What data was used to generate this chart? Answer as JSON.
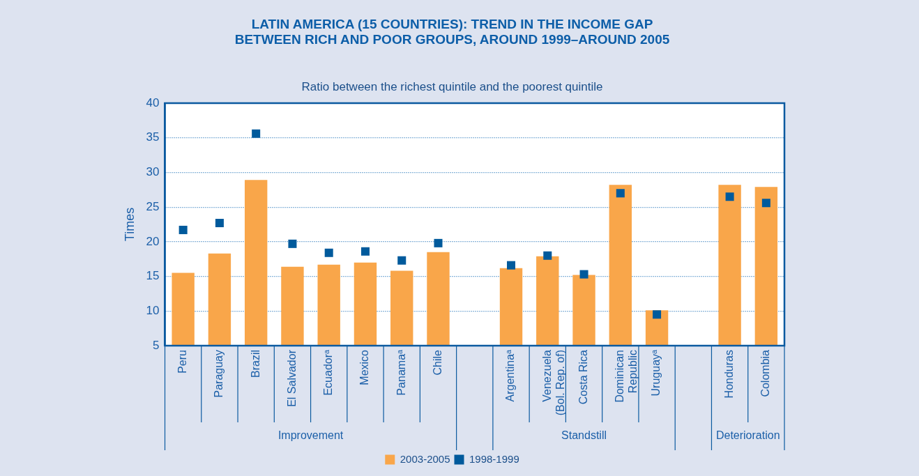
{
  "chart_data": {
    "type": "bar",
    "title": "LATIN AMERICA (15 COUNTRIES): TREND IN THE INCOME GAP BETWEEN RICH AND POOR GROUPS, AROUND 1999–AROUND 2005",
    "subtitle": "Ratio between the richest quintile and the poorest quintile",
    "ylabel": "Times",
    "categories": [
      "Peru",
      "Paraguay",
      "Brazil",
      "El Salvador",
      "Ecuadorᵃ",
      "Mexico",
      "Panamaᵃ",
      "Chile",
      null,
      "Argentinaᵃ",
      "Venezuela (Bol. Rep. of)",
      "Costa Rica",
      "Dominican Republic",
      "Uruguayᵃ",
      null,
      "Honduras",
      "Colombia"
    ],
    "series": [
      {
        "name": "2003-2005",
        "color": "#f9a64a",
        "values": [
          15.5,
          18.3,
          28.9,
          16.4,
          16.7,
          17.0,
          15.8,
          18.5,
          null,
          16.2,
          17.9,
          15.2,
          28.2,
          10.1,
          null,
          28.2,
          27.9
        ]
      },
      {
        "name": "1998-1999",
        "type": "scatter",
        "color": "#005a9c",
        "values": [
          21.7,
          22.7,
          35.6,
          19.7,
          18.4,
          18.6,
          17.3,
          19.8,
          null,
          16.6,
          18.0,
          15.3,
          27.0,
          9.5,
          null,
          26.5,
          25.6
        ]
      }
    ],
    "marker": "square",
    "ylim": [
      5,
      40
    ],
    "yticks": [
      5,
      10,
      15,
      20,
      25,
      30,
      35,
      40
    ],
    "grid": "y",
    "legend": "bottom",
    "annotations": [
      "Improvement",
      "Standstill",
      "Deterioration"
    ]
  }
}
